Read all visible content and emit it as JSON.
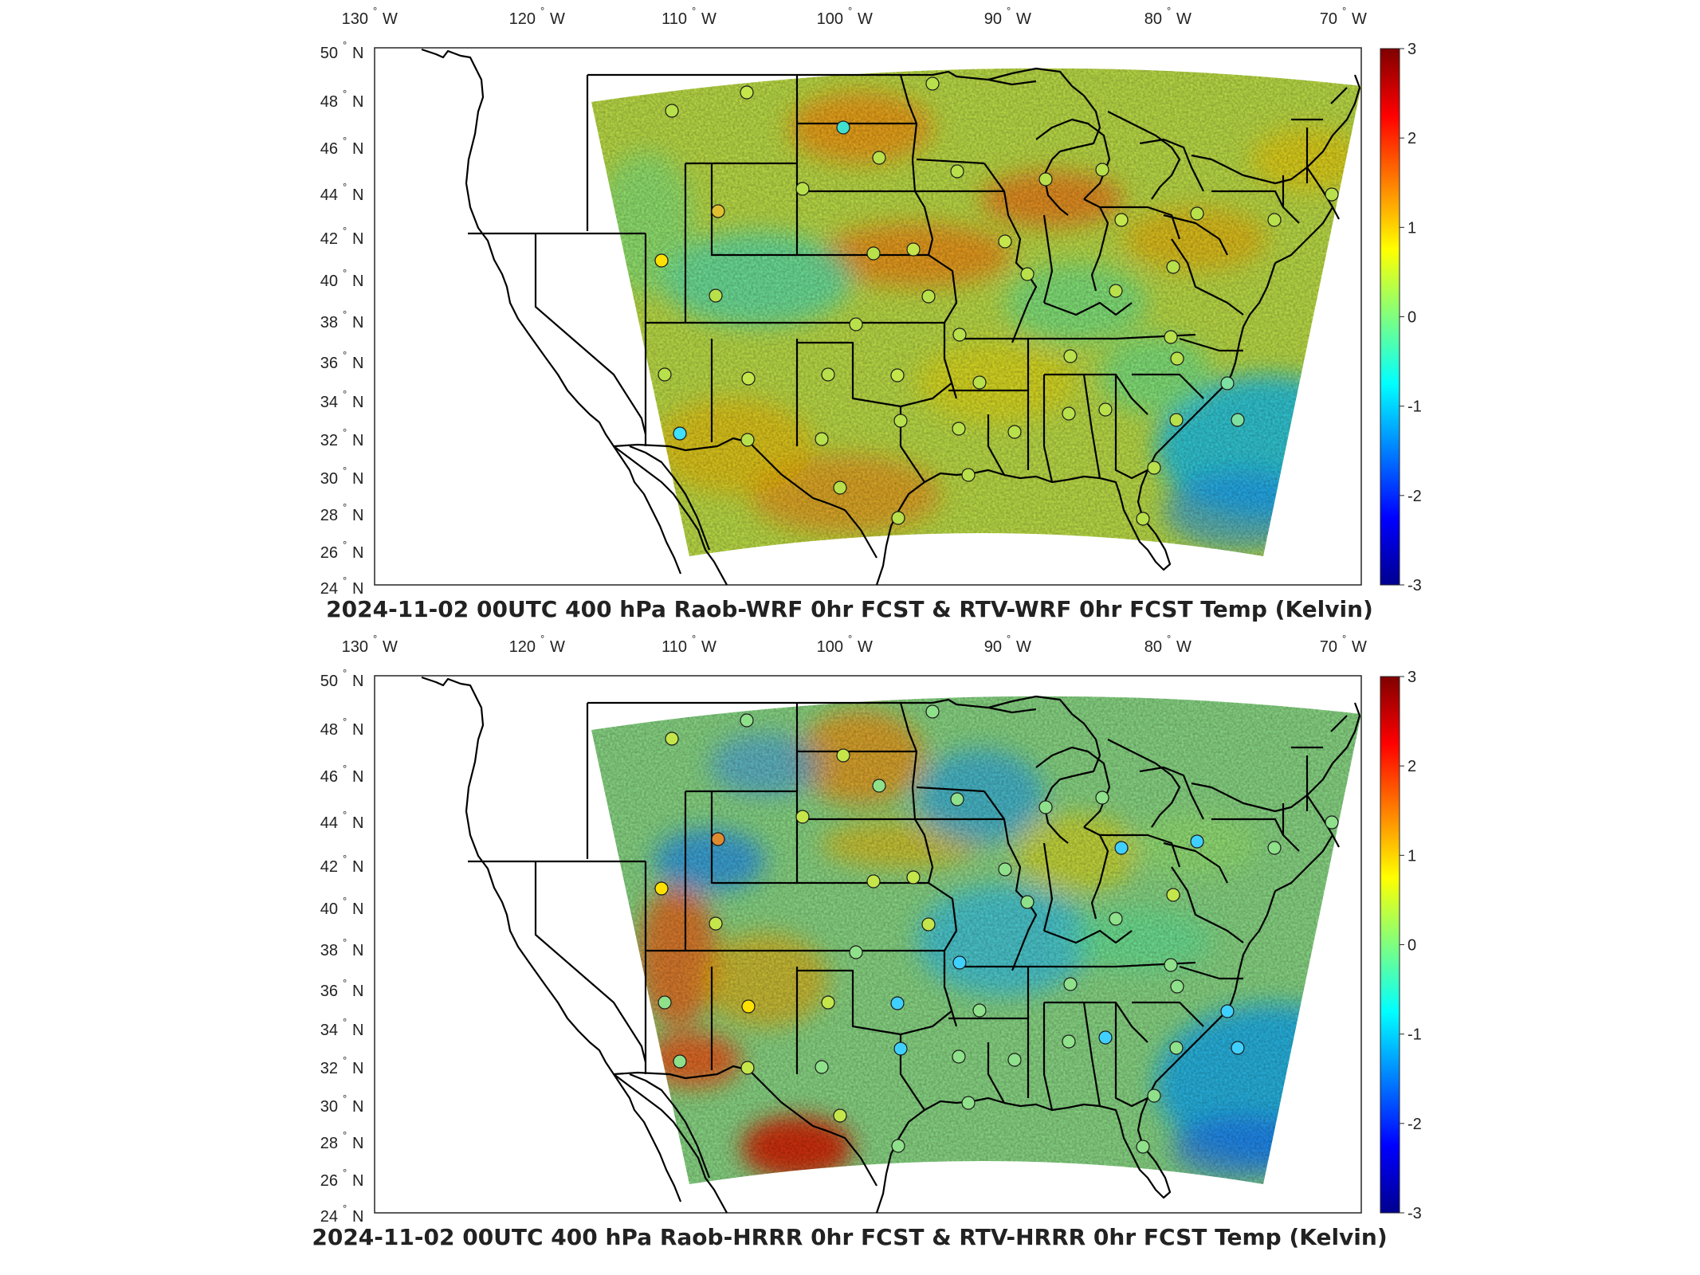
{
  "panels": [
    {
      "title": "2024-11-02 00UTC 400 hPa Raob-WRF 0hr FCST & RTV-WRF 0hr FCST Temp (Kelvin)",
      "overall": "#c4e64a"
    },
    {
      "title": "2024-11-02 00UTC 400 hPa Raob-HRRR 0hr FCST & RTV-HRRR 0hr FCST Temp (Kelvin)",
      "overall": "#8fe08a"
    }
  ],
  "lon_ticks": [
    {
      "num": "130",
      "dir": "W"
    },
    {
      "num": "120",
      "dir": "W"
    },
    {
      "num": "110",
      "dir": "W"
    },
    {
      "num": "100",
      "dir": "W"
    },
    {
      "num": "90",
      "dir": "W"
    },
    {
      "num": "80",
      "dir": "W"
    },
    {
      "num": "70",
      "dir": "W"
    }
  ],
  "lat_ticks": [
    {
      "num": "50",
      "dir": "N"
    },
    {
      "num": "48",
      "dir": "N"
    },
    {
      "num": "46",
      "dir": "N"
    },
    {
      "num": "44",
      "dir": "N"
    },
    {
      "num": "42",
      "dir": "N"
    },
    {
      "num": "40",
      "dir": "N"
    },
    {
      "num": "38",
      "dir": "N"
    },
    {
      "num": "36",
      "dir": "N"
    },
    {
      "num": "34",
      "dir": "N"
    },
    {
      "num": "32",
      "dir": "N"
    },
    {
      "num": "30",
      "dir": "N"
    },
    {
      "num": "28",
      "dir": "N"
    },
    {
      "num": "26",
      "dir": "N"
    },
    {
      "num": "24",
      "dir": "N"
    }
  ],
  "colorbar": {
    "labels": [
      "3",
      "2",
      "1",
      "0",
      "-1",
      "-2",
      "-3"
    ],
    "colormap": "jet",
    "range": [
      -3,
      3
    ]
  }
}
